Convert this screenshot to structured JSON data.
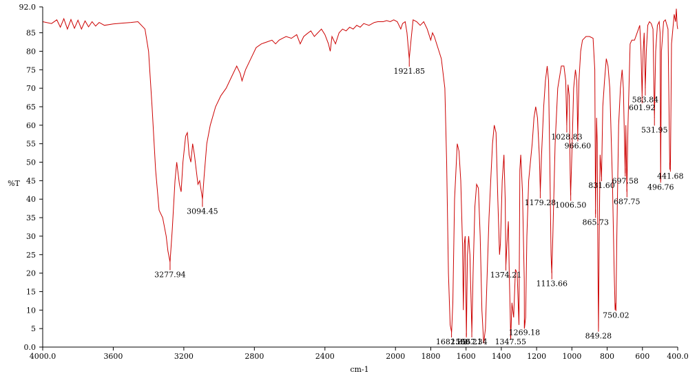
{
  "chart_data": {
    "type": "line",
    "title": "",
    "xlabel": "cm-1",
    "ylabel": "%T",
    "xlim": [
      4000.0,
      400.0
    ],
    "ylim": [
      0.0,
      92.0
    ],
    "x_reversed": true,
    "grid": false,
    "x_ticks": [
      {
        "value": 4000,
        "label": "4000.0"
      },
      {
        "value": 3600,
        "label": "3600"
      },
      {
        "value": 3200,
        "label": "3200"
      },
      {
        "value": 2800,
        "label": "2800"
      },
      {
        "value": 2400,
        "label": "2400"
      },
      {
        "value": 2000,
        "label": "2000"
      },
      {
        "value": 1800,
        "label": "1800"
      },
      {
        "value": 1600,
        "label": "1600"
      },
      {
        "value": 1400,
        "label": "1400"
      },
      {
        "value": 1200,
        "label": "1200"
      },
      {
        "value": 1000,
        "label": "1000"
      },
      {
        "value": 800,
        "label": "800"
      },
      {
        "value": 600,
        "label": "600"
      },
      {
        "value": 400,
        "label": "400.0"
      }
    ],
    "y_ticks": [
      {
        "value": 0,
        "label": "0.0"
      },
      {
        "value": 5,
        "label": "5"
      },
      {
        "value": 10,
        "label": "10"
      },
      {
        "value": 15,
        "label": "15"
      },
      {
        "value": 20,
        "label": "20"
      },
      {
        "value": 25,
        "label": "25"
      },
      {
        "value": 30,
        "label": "30"
      },
      {
        "value": 35,
        "label": "35"
      },
      {
        "value": 40,
        "label": "40"
      },
      {
        "value": 45,
        "label": "45"
      },
      {
        "value": 50,
        "label": "50"
      },
      {
        "value": 55,
        "label": "55"
      },
      {
        "value": 60,
        "label": "60"
      },
      {
        "value": 65,
        "label": "65"
      },
      {
        "value": 70,
        "label": "70"
      },
      {
        "value": 75,
        "label": "75"
      },
      {
        "value": 80,
        "label": "80"
      },
      {
        "value": 85,
        "label": "85"
      },
      {
        "value": 92,
        "label": "92.0"
      }
    ],
    "series": [
      {
        "color": "#cc0000",
        "points": [
          [
            4000,
            88.0
          ],
          [
            3950,
            87.5
          ],
          [
            3920,
            88.5
          ],
          [
            3900,
            86.5
          ],
          [
            3880,
            88.8
          ],
          [
            3860,
            86.0
          ],
          [
            3840,
            88.6
          ],
          [
            3820,
            86.2
          ],
          [
            3800,
            88.4
          ],
          [
            3780,
            86.0
          ],
          [
            3760,
            88.2
          ],
          [
            3740,
            86.6
          ],
          [
            3720,
            88.0
          ],
          [
            3700,
            86.8
          ],
          [
            3680,
            87.8
          ],
          [
            3650,
            87.0
          ],
          [
            3600,
            87.4
          ],
          [
            3550,
            87.6
          ],
          [
            3500,
            87.8
          ],
          [
            3460,
            88.0
          ],
          [
            3420,
            86.0
          ],
          [
            3400,
            80.0
          ],
          [
            3380,
            65.0
          ],
          [
            3360,
            48.0
          ],
          [
            3340,
            37.0
          ],
          [
            3320,
            35.0
          ],
          [
            3300,
            30.0
          ],
          [
            3290,
            26.0
          ],
          [
            3278,
            23.0
          ],
          [
            3265,
            32.0
          ],
          [
            3250,
            45.0
          ],
          [
            3240,
            50.0
          ],
          [
            3225,
            44.0
          ],
          [
            3215,
            42.0
          ],
          [
            3205,
            50.0
          ],
          [
            3190,
            57.0
          ],
          [
            3180,
            58.0
          ],
          [
            3170,
            52.0
          ],
          [
            3160,
            50.0
          ],
          [
            3150,
            55.0
          ],
          [
            3140,
            52.0
          ],
          [
            3120,
            44.0
          ],
          [
            3110,
            45.0
          ],
          [
            3094,
            40.0
          ],
          [
            3085,
            46.0
          ],
          [
            3070,
            55.0
          ],
          [
            3050,
            60.0
          ],
          [
            3020,
            65.0
          ],
          [
            2990,
            68.0
          ],
          [
            2960,
            70.0
          ],
          [
            2930,
            73.0
          ],
          [
            2900,
            76.0
          ],
          [
            2880,
            74.0
          ],
          [
            2870,
            72.0
          ],
          [
            2850,
            75.0
          ],
          [
            2820,
            78.0
          ],
          [
            2790,
            81.0
          ],
          [
            2760,
            82.0
          ],
          [
            2730,
            82.5
          ],
          [
            2700,
            83.0
          ],
          [
            2680,
            82.0
          ],
          [
            2660,
            83.0
          ],
          [
            2640,
            83.5
          ],
          [
            2620,
            84.0
          ],
          [
            2590,
            83.5
          ],
          [
            2560,
            84.5
          ],
          [
            2540,
            82.0
          ],
          [
            2520,
            84.0
          ],
          [
            2500,
            84.8
          ],
          [
            2480,
            85.5
          ],
          [
            2460,
            84.0
          ],
          [
            2440,
            85.0
          ],
          [
            2420,
            86.0
          ],
          [
            2400,
            84.5
          ],
          [
            2380,
            82.0
          ],
          [
            2370,
            80.0
          ],
          [
            2360,
            84.0
          ],
          [
            2340,
            82.0
          ],
          [
            2320,
            85.0
          ],
          [
            2300,
            86.0
          ],
          [
            2280,
            85.5
          ],
          [
            2260,
            86.5
          ],
          [
            2240,
            86.0
          ],
          [
            2220,
            87.0
          ],
          [
            2200,
            86.5
          ],
          [
            2180,
            87.5
          ],
          [
            2150,
            87.0
          ],
          [
            2120,
            87.8
          ],
          [
            2100,
            88.0
          ],
          [
            2070,
            88.0
          ],
          [
            2050,
            88.3
          ],
          [
            2030,
            88.0
          ],
          [
            2010,
            88.5
          ],
          [
            1990,
            88.0
          ],
          [
            1970,
            86.0
          ],
          [
            1960,
            87.5
          ],
          [
            1945,
            88.0
          ],
          [
            1935,
            85.0
          ],
          [
            1922,
            78.0
          ],
          [
            1910,
            84.0
          ],
          [
            1900,
            88.5
          ],
          [
            1880,
            88.0
          ],
          [
            1860,
            87.0
          ],
          [
            1840,
            88.0
          ],
          [
            1820,
            86.0
          ],
          [
            1800,
            83.0
          ],
          [
            1790,
            85.0
          ],
          [
            1780,
            84.0
          ],
          [
            1760,
            81.0
          ],
          [
            1740,
            78.0
          ],
          [
            1720,
            70.0
          ],
          [
            1710,
            50.0
          ],
          [
            1700,
            20.0
          ],
          [
            1690,
            6.0
          ],
          [
            1682,
            4.0
          ],
          [
            1675,
            12.0
          ],
          [
            1665,
            40.0
          ],
          [
            1650,
            55.0
          ],
          [
            1640,
            53.0
          ],
          [
            1630,
            45.0
          ],
          [
            1620,
            28.0
          ],
          [
            1615,
            10.0
          ],
          [
            1610,
            28.0
          ],
          [
            1605,
            30.0
          ],
          [
            1598,
            3.0
          ],
          [
            1592,
            25.0
          ],
          [
            1585,
            30.0
          ],
          [
            1578,
            25.0
          ],
          [
            1567,
            4.0
          ],
          [
            1560,
            20.0
          ],
          [
            1550,
            38.0
          ],
          [
            1540,
            44.0
          ],
          [
            1530,
            43.0
          ],
          [
            1520,
            30.0
          ],
          [
            1510,
            10.0
          ],
          [
            1500,
            1.0
          ],
          [
            1490,
            5.0
          ],
          [
            1480,
            20.0
          ],
          [
            1470,
            35.0
          ],
          [
            1460,
            45.0
          ],
          [
            1450,
            55.0
          ],
          [
            1440,
            60.0
          ],
          [
            1430,
            58.0
          ],
          [
            1420,
            40.0
          ],
          [
            1410,
            25.0
          ],
          [
            1405,
            28.0
          ],
          [
            1395,
            45.0
          ],
          [
            1385,
            52.0
          ],
          [
            1378,
            40.0
          ],
          [
            1374,
            22.0
          ],
          [
            1368,
            28.0
          ],
          [
            1360,
            34.0
          ],
          [
            1355,
            20.0
          ],
          [
            1350,
            10.0
          ],
          [
            1347,
            2.0
          ],
          [
            1340,
            12.0
          ],
          [
            1330,
            8.0
          ],
          [
            1320,
            21.0
          ],
          [
            1310,
            20.0
          ],
          [
            1300,
            6.0
          ],
          [
            1295,
            48.0
          ],
          [
            1290,
            52.0
          ],
          [
            1280,
            42.0
          ],
          [
            1270,
            18.0
          ],
          [
            1269,
            5.0
          ],
          [
            1262,
            8.0
          ],
          [
            1255,
            30.0
          ],
          [
            1245,
            45.0
          ],
          [
            1235,
            50.0
          ],
          [
            1225,
            55.0
          ],
          [
            1215,
            62.0
          ],
          [
            1205,
            65.0
          ],
          [
            1195,
            62.0
          ],
          [
            1185,
            52.0
          ],
          [
            1179,
            42.0
          ],
          [
            1172,
            52.0
          ],
          [
            1160,
            65.0
          ],
          [
            1150,
            72.0
          ],
          [
            1140,
            76.0
          ],
          [
            1132,
            72.0
          ],
          [
            1125,
            50.0
          ],
          [
            1118,
            25.0
          ],
          [
            1114,
            20.0
          ],
          [
            1108,
            30.0
          ],
          [
            1095,
            55.0
          ],
          [
            1080,
            70.0
          ],
          [
            1060,
            76.0
          ],
          [
            1045,
            76.0
          ],
          [
            1035,
            72.0
          ],
          [
            1029,
            60.0
          ],
          [
            1022,
            71.0
          ],
          [
            1015,
            68.0
          ],
          [
            1010,
            48.0
          ],
          [
            1007,
            41.0
          ],
          [
            1000,
            52.0
          ],
          [
            990,
            70.0
          ],
          [
            980,
            75.0
          ],
          [
            972,
            72.0
          ],
          [
            967,
            57.0
          ],
          [
            960,
            72.0
          ],
          [
            950,
            80.0
          ],
          [
            940,
            83.0
          ],
          [
            920,
            84.0
          ],
          [
            900,
            84.0
          ],
          [
            880,
            83.5
          ],
          [
            870,
            75.0
          ],
          [
            866,
            36.0
          ],
          [
            860,
            62.0
          ],
          [
            856,
            55.0
          ],
          [
            852,
            20.0
          ],
          [
            849,
            5.0
          ],
          [
            845,
            30.0
          ],
          [
            840,
            52.0
          ],
          [
            832,
            46.0
          ],
          [
            825,
            65.0
          ],
          [
            815,
            72.0
          ],
          [
            805,
            78.0
          ],
          [
            795,
            76.0
          ],
          [
            785,
            70.0
          ],
          [
            770,
            45.0
          ],
          [
            760,
            20.0
          ],
          [
            755,
            10.0
          ],
          [
            750,
            12.0
          ],
          [
            745,
            30.0
          ],
          [
            735,
            60.0
          ],
          [
            725,
            70.0
          ],
          [
            715,
            75.0
          ],
          [
            708,
            70.0
          ],
          [
            698,
            47.0
          ],
          [
            694,
            60.0
          ],
          [
            688,
            42.0
          ],
          [
            682,
            60.0
          ],
          [
            670,
            82.0
          ],
          [
            660,
            83.0
          ],
          [
            645,
            83.0
          ],
          [
            630,
            85.0
          ],
          [
            615,
            87.0
          ],
          [
            608,
            80.0
          ],
          [
            602,
            68.0
          ],
          [
            596,
            80.0
          ],
          [
            590,
            85.0
          ],
          [
            584,
            70.0
          ],
          [
            578,
            80.0
          ],
          [
            570,
            87.0
          ],
          [
            560,
            88.0
          ],
          [
            550,
            87.5
          ],
          [
            540,
            86.0
          ],
          [
            532,
            62.0
          ],
          [
            525,
            80.0
          ],
          [
            515,
            87.0
          ],
          [
            505,
            88.0
          ],
          [
            500,
            85.0
          ],
          [
            497,
            45.0
          ],
          [
            492,
            80.0
          ],
          [
            480,
            88.0
          ],
          [
            470,
            88.5
          ],
          [
            455,
            86.0
          ],
          [
            445,
            48.0
          ],
          [
            441,
            50.0
          ],
          [
            435,
            82.0
          ],
          [
            420,
            90.0
          ],
          [
            412,
            88.0
          ],
          [
            408,
            91.5
          ],
          [
            403,
            87.0
          ],
          [
            400,
            86.0
          ]
        ]
      }
    ],
    "annotations": [
      {
        "x": 3277.94,
        "label": "3277.94"
      },
      {
        "x": 3094.45,
        "label": "3094.45"
      },
      {
        "x": 1921.85,
        "label": "1921.85"
      },
      {
        "x": 1682.32,
        "label": "1682.32"
      },
      {
        "x": 1598.21,
        "label": "1598.21"
      },
      {
        "x": 1567.34,
        "label": "1567.34"
      },
      {
        "x": 1374.21,
        "label": "1374.21"
      },
      {
        "x": 1347.55,
        "label": "1347.55"
      },
      {
        "x": 1269.18,
        "label": "1269.18"
      },
      {
        "x": 1179.28,
        "label": "1179.28"
      },
      {
        "x": 1113.66,
        "label": "1113.66"
      },
      {
        "x": 1028.83,
        "label": "1028.83"
      },
      {
        "x": 1006.5,
        "label": "1006.50"
      },
      {
        "x": 966.6,
        "label": "966.60"
      },
      {
        "x": 865.73,
        "label": "865.73"
      },
      {
        "x": 849.28,
        "label": "849.28"
      },
      {
        "x": 831.6,
        "label": "831.60"
      },
      {
        "x": 750.02,
        "label": "750.02"
      },
      {
        "x": 697.58,
        "label": "697.58"
      },
      {
        "x": 687.75,
        "label": "687.75"
      },
      {
        "x": 601.92,
        "label": "601.92"
      },
      {
        "x": 583.84,
        "label": "583.84"
      },
      {
        "x": 531.95,
        "label": "531.95"
      },
      {
        "x": 496.76,
        "label": "496.76"
      },
      {
        "x": 441.68,
        "label": "441.68"
      }
    ]
  }
}
